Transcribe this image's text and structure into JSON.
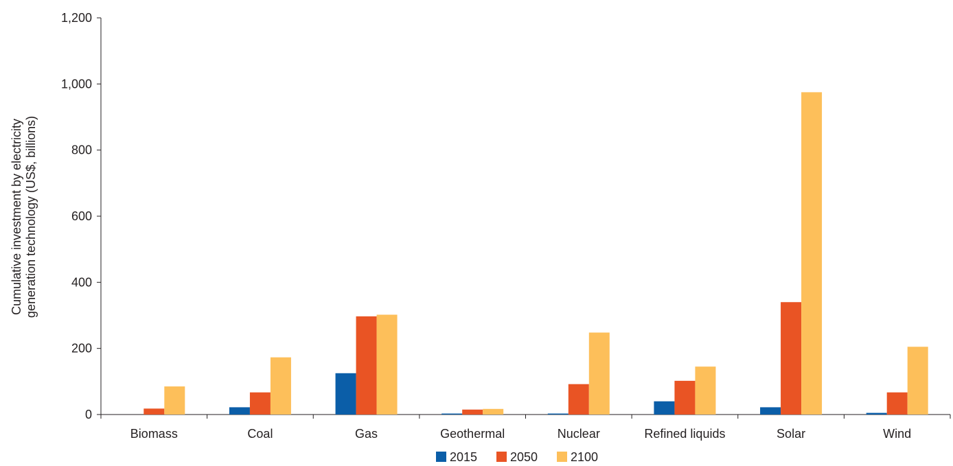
{
  "chart_data": {
    "type": "bar",
    "title": "",
    "xlabel": "",
    "ylabel_lines": [
      "Cumulative investment by electricity",
      "generation technology (US$, billions)"
    ],
    "categories": [
      "Biomass",
      "Coal",
      "Gas",
      "Geothermal",
      "Nuclear",
      "Refined liquids",
      "Solar",
      "Wind"
    ],
    "series": [
      {
        "name": "2015",
        "color": "#0b5ea8",
        "values": [
          0,
          22,
          125,
          3,
          3,
          40,
          22,
          5
        ]
      },
      {
        "name": "2050",
        "color": "#e95424",
        "values": [
          18,
          67,
          297,
          15,
          92,
          102,
          340,
          67
        ]
      },
      {
        "name": "2100",
        "color": "#fdbf5a",
        "values": [
          85,
          173,
          302,
          17,
          248,
          145,
          975,
          205
        ]
      }
    ],
    "ylim": [
      0,
      1200
    ],
    "yticks": [
      0,
      200,
      400,
      600,
      800,
      1000,
      1200
    ],
    "ytick_labels": [
      "0",
      "200",
      "400",
      "600",
      "800",
      "1,000",
      "1,200"
    ],
    "grid": false,
    "legend_position": "bottom-center"
  }
}
